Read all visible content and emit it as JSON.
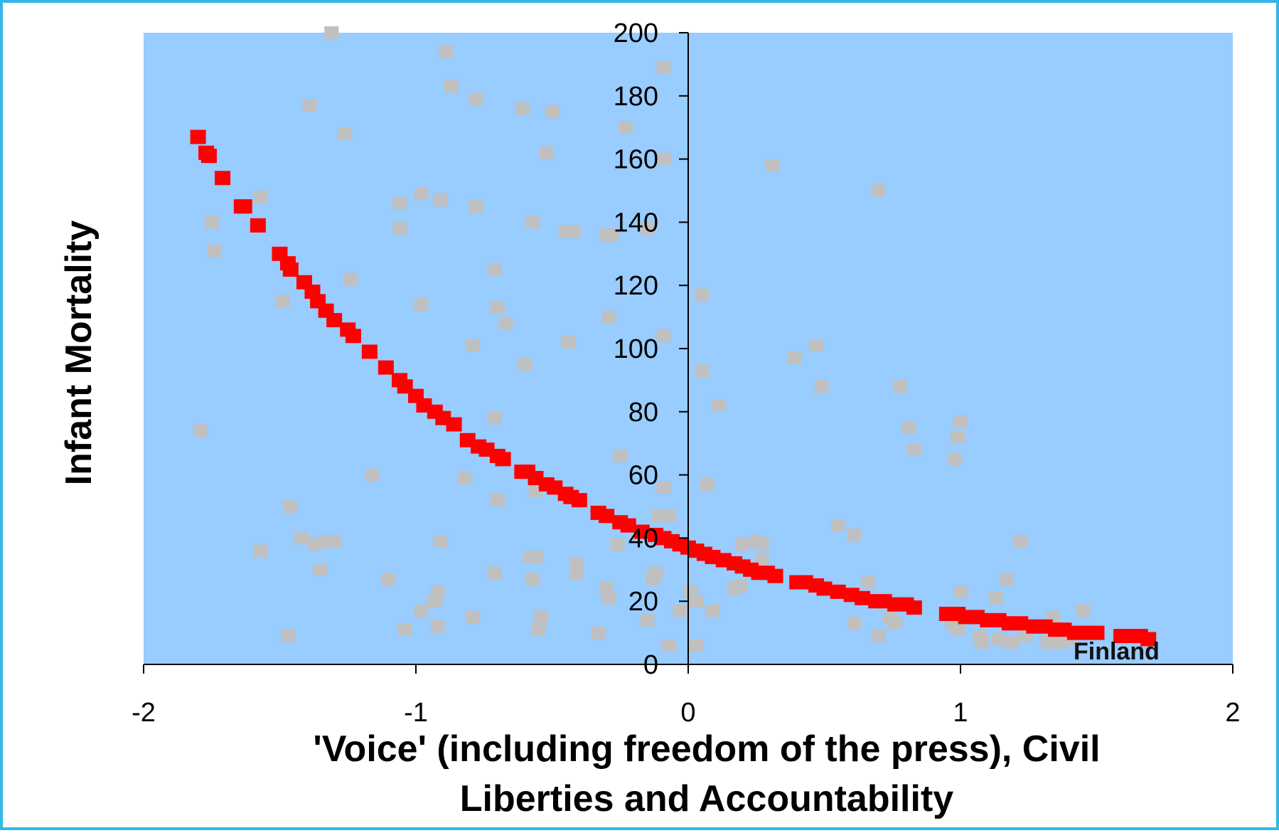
{
  "chart_data": {
    "type": "scatter",
    "xlabel_lines": [
      "'Voice' (including freedom of the press), Civil",
      "Liberties and Accountability"
    ],
    "ylabel": "Infant Mortality",
    "xlim": [
      -2,
      2
    ],
    "ylim": [
      0,
      200
    ],
    "x_ticks": [
      "-2",
      "-1",
      "0",
      "1",
      "2"
    ],
    "y_ticks": [
      "0",
      "20",
      "40",
      "60",
      "80",
      "100",
      "120",
      "140",
      "160",
      "180",
      "200"
    ],
    "annotations": [
      {
        "text": "Finland",
        "x": 1.6,
        "y": 4
      }
    ],
    "colors": {
      "plot_bg": "#99ccff",
      "border": "#33b8e6",
      "fit": "#ff0000",
      "observed": "#c0c0c0"
    },
    "series": [
      {
        "role": "observed",
        "points": [
          [
            -1.31,
            200
          ],
          [
            -0.89,
            194
          ],
          [
            -0.87,
            183
          ],
          [
            -0.78,
            179
          ],
          [
            -1.39,
            177
          ],
          [
            -0.61,
            176
          ],
          [
            -0.5,
            175
          ],
          [
            -0.23,
            170
          ],
          [
            -1.26,
            168
          ],
          [
            -0.09,
            189
          ],
          [
            -0.52,
            162
          ],
          [
            -0.09,
            160
          ],
          [
            0.31,
            158
          ],
          [
            0.7,
            150
          ],
          [
            -1.57,
            148
          ],
          [
            -0.98,
            149
          ],
          [
            -0.91,
            147
          ],
          [
            -1.06,
            146
          ],
          [
            -0.78,
            145
          ],
          [
            -1.75,
            140
          ],
          [
            -0.57,
            140
          ],
          [
            -1.06,
            138
          ],
          [
            -0.45,
            137
          ],
          [
            -0.42,
            137
          ],
          [
            -0.3,
            136
          ],
          [
            -0.28,
            136
          ],
          [
            -0.15,
            138
          ],
          [
            -1.74,
            131
          ],
          [
            -0.71,
            125
          ],
          [
            -1.24,
            122
          ],
          [
            -1.49,
            115
          ],
          [
            -0.98,
            114
          ],
          [
            -0.7,
            113
          ],
          [
            -0.67,
            108
          ],
          [
            -0.29,
            110
          ],
          [
            0.05,
            117
          ],
          [
            -0.79,
            101
          ],
          [
            -0.44,
            102
          ],
          [
            -0.09,
            104
          ],
          [
            0.39,
            97
          ],
          [
            0.47,
            101
          ],
          [
            -0.6,
            95
          ],
          [
            0.05,
            93
          ],
          [
            0.49,
            88
          ],
          [
            0.78,
            88
          ],
          [
            0.11,
            82
          ],
          [
            -0.71,
            78
          ],
          [
            0.81,
            75
          ],
          [
            1.0,
            77
          ],
          [
            0.99,
            72
          ],
          [
            -1.79,
            74
          ],
          [
            0.83,
            68
          ],
          [
            -0.25,
            66
          ],
          [
            0.98,
            65
          ],
          [
            -1.16,
            60
          ],
          [
            -0.82,
            59
          ],
          [
            -0.09,
            56
          ],
          [
            0.07,
            57
          ],
          [
            -0.56,
            55
          ],
          [
            -0.7,
            52
          ],
          [
            -1.46,
            50
          ],
          [
            -0.11,
            47
          ],
          [
            -0.07,
            47
          ],
          [
            0.55,
            44
          ],
          [
            0.61,
            41
          ],
          [
            1.22,
            39
          ],
          [
            -1.42,
            40
          ],
          [
            -1.37,
            38
          ],
          [
            -1.33,
            39
          ],
          [
            -1.3,
            39
          ],
          [
            -0.91,
            39
          ],
          [
            -0.26,
            38
          ],
          [
            0.2,
            38
          ],
          [
            0.25,
            39
          ],
          [
            0.27,
            38
          ],
          [
            -1.57,
            36
          ],
          [
            -0.58,
            34
          ],
          [
            -0.56,
            34
          ],
          [
            0.27,
            33
          ],
          [
            -0.41,
            32
          ],
          [
            -1.35,
            30
          ],
          [
            -0.71,
            29
          ],
          [
            -0.41,
            29
          ],
          [
            -0.12,
            29
          ],
          [
            -0.13,
            27
          ],
          [
            -1.1,
            27
          ],
          [
            -0.57,
            27
          ],
          [
            0.66,
            26
          ],
          [
            1.17,
            27
          ],
          [
            0.17,
            24
          ],
          [
            0.19,
            25
          ],
          [
            -0.3,
            24
          ],
          [
            -0.92,
            23
          ],
          [
            0.01,
            23
          ],
          [
            1.0,
            23
          ],
          [
            -0.93,
            20
          ],
          [
            -0.29,
            21
          ],
          [
            0.03,
            20
          ],
          [
            1.13,
            21
          ],
          [
            -0.98,
            17
          ],
          [
            -0.03,
            17
          ],
          [
            0.09,
            17
          ],
          [
            -0.79,
            15
          ],
          [
            -0.54,
            15
          ],
          [
            -0.15,
            14
          ],
          [
            0.61,
            13
          ],
          [
            0.76,
            13
          ],
          [
            0.74,
            15
          ],
          [
            0.97,
            13
          ],
          [
            1.34,
            15
          ],
          [
            1.45,
            17
          ],
          [
            -0.92,
            12
          ],
          [
            -1.04,
            11
          ],
          [
            -0.55,
            11
          ],
          [
            -0.33,
            10
          ],
          [
            0.99,
            11
          ],
          [
            1.07,
            9
          ],
          [
            -1.47,
            9
          ],
          [
            0.7,
            9
          ],
          [
            1.08,
            7
          ],
          [
            1.14,
            8
          ],
          [
            1.19,
            7
          ],
          [
            1.24,
            9
          ],
          [
            1.32,
            7
          ],
          [
            1.37,
            7
          ],
          [
            1.4,
            8
          ],
          [
            -0.07,
            6
          ],
          [
            0.03,
            6
          ]
        ]
      },
      {
        "role": "fit",
        "points": [
          [
            -1.8,
            167
          ],
          [
            -1.77,
            162
          ],
          [
            -1.76,
            161
          ],
          [
            -1.71,
            154
          ],
          [
            -1.64,
            145
          ],
          [
            -1.63,
            145
          ],
          [
            -1.58,
            139
          ],
          [
            -1.5,
            130
          ],
          [
            -1.47,
            127
          ],
          [
            -1.46,
            125
          ],
          [
            -1.41,
            121
          ],
          [
            -1.38,
            118
          ],
          [
            -1.36,
            115
          ],
          [
            -1.33,
            112
          ],
          [
            -1.3,
            109
          ],
          [
            -1.25,
            106
          ],
          [
            -1.23,
            104
          ],
          [
            -1.17,
            99
          ],
          [
            -1.11,
            94
          ],
          [
            -1.06,
            90
          ],
          [
            -1.04,
            88
          ],
          [
            -1.0,
            85
          ],
          [
            -0.97,
            82
          ],
          [
            -0.93,
            80
          ],
          [
            -0.9,
            78
          ],
          [
            -0.86,
            76
          ],
          [
            -0.81,
            71
          ],
          [
            -0.77,
            69
          ],
          [
            -0.74,
            68
          ],
          [
            -0.7,
            66
          ],
          [
            -0.68,
            65
          ],
          [
            -0.61,
            61
          ],
          [
            -0.59,
            61
          ],
          [
            -0.56,
            59
          ],
          [
            -0.52,
            57
          ],
          [
            -0.49,
            56
          ],
          [
            -0.45,
            54
          ],
          [
            -0.43,
            53
          ],
          [
            -0.4,
            52
          ],
          [
            -0.33,
            48
          ],
          [
            -0.3,
            47
          ],
          [
            -0.25,
            45
          ],
          [
            -0.22,
            44
          ],
          [
            -0.17,
            42
          ],
          [
            -0.12,
            41
          ],
          [
            -0.09,
            40
          ],
          [
            -0.06,
            39
          ],
          [
            -0.03,
            38
          ],
          [
            0.0,
            37
          ],
          [
            0.03,
            36
          ],
          [
            0.06,
            35
          ],
          [
            0.09,
            34
          ],
          [
            0.13,
            33
          ],
          [
            0.17,
            32
          ],
          [
            0.2,
            31
          ],
          [
            0.23,
            30
          ],
          [
            0.26,
            29
          ],
          [
            0.29,
            29
          ],
          [
            0.32,
            28
          ],
          [
            0.4,
            26
          ],
          [
            0.43,
            26
          ],
          [
            0.47,
            25
          ],
          [
            0.5,
            24
          ],
          [
            0.55,
            23
          ],
          [
            0.6,
            22
          ],
          [
            0.64,
            21
          ],
          [
            0.69,
            20
          ],
          [
            0.72,
            20
          ],
          [
            0.76,
            19
          ],
          [
            0.8,
            19
          ],
          [
            0.83,
            18
          ],
          [
            0.95,
            16
          ],
          [
            0.99,
            16
          ],
          [
            1.02,
            15
          ],
          [
            1.06,
            15
          ],
          [
            1.1,
            14
          ],
          [
            1.14,
            14
          ],
          [
            1.18,
            13
          ],
          [
            1.22,
            13
          ],
          [
            1.27,
            12
          ],
          [
            1.31,
            12
          ],
          [
            1.35,
            11
          ],
          [
            1.38,
            11
          ],
          [
            1.42,
            10
          ],
          [
            1.46,
            10
          ],
          [
            1.5,
            10
          ],
          [
            1.59,
            9
          ],
          [
            1.63,
            9
          ],
          [
            1.66,
            9
          ],
          [
            1.69,
            8
          ]
        ]
      }
    ]
  }
}
